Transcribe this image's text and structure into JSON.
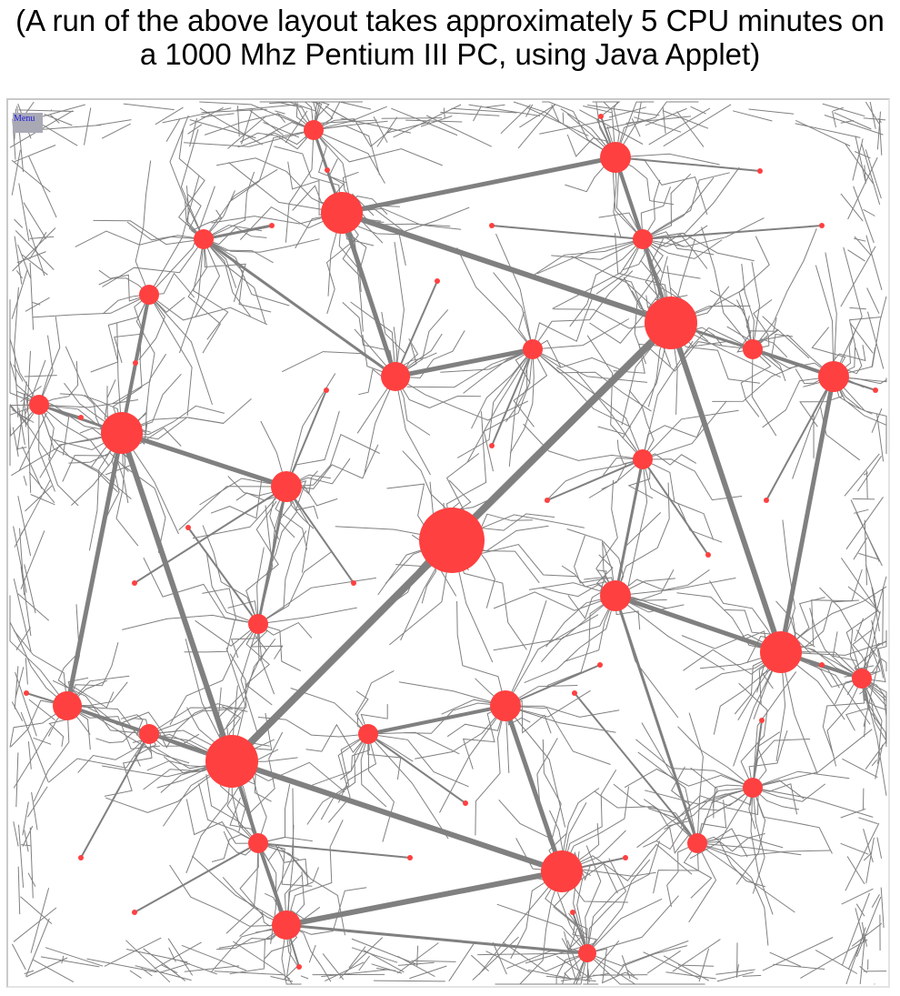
{
  "caption": {
    "line1": "(A run of the above layout takes approximately 5 CPU minutes on",
    "line2": "a 1000 Mhz Pentium III PC, using Java Applet)"
  },
  "applet": {
    "menu_label": "Menu"
  },
  "colors": {
    "node": "#ff4040",
    "edge": "#808080",
    "background": "#ffffff",
    "menu_bg": "#a9a9b6",
    "menu_text": "#1c1cd9"
  }
}
